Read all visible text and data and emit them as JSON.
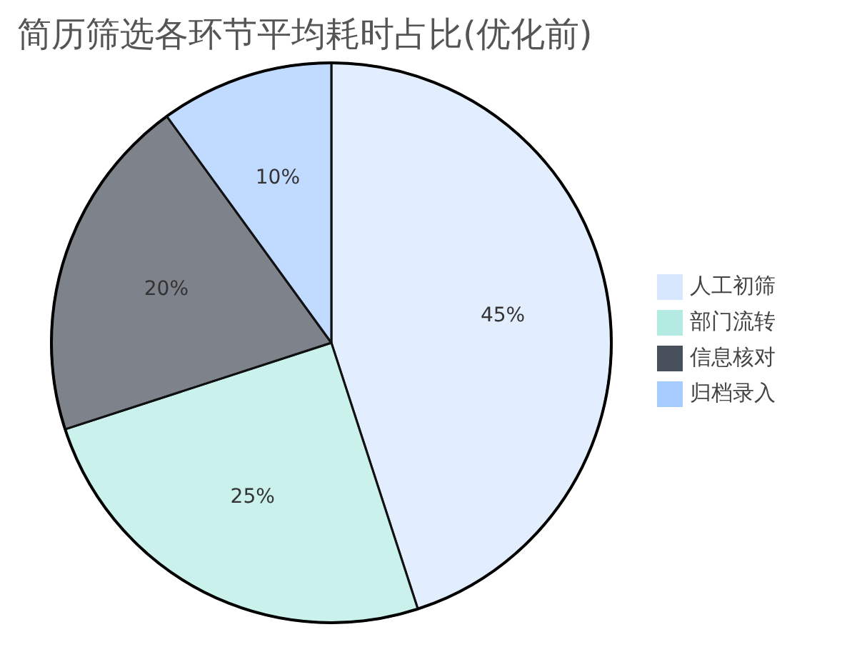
{
  "chart_data": {
    "type": "pie",
    "title": "简历筛选各环节平均耗时占比(优化前)",
    "categories": [
      "人工初筛",
      "部门流转",
      "信息核对",
      "归档录入"
    ],
    "values": [
      45,
      25,
      20,
      10
    ],
    "colors": [
      "#d6e6fc",
      "#b3ebe3",
      "#474f5a",
      "#a6cbff"
    ],
    "value_labels": [
      "45%",
      "25%",
      "20%",
      "10%"
    ],
    "legend": "right"
  }
}
